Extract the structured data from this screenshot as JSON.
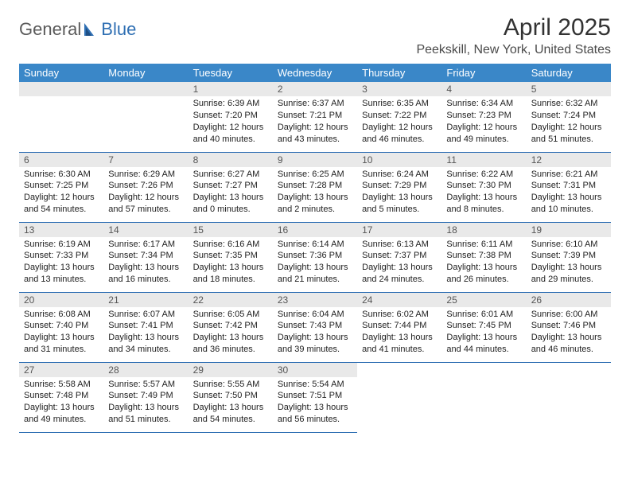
{
  "brand": {
    "word1": "General",
    "word2": "Blue"
  },
  "colors": {
    "header_bg": "#3a87c8",
    "header_text": "#ffffff",
    "daynum_bg": "#e9e9e9",
    "daynum_text": "#555555",
    "cell_border": "#2f6fb3",
    "body_text": "#222222",
    "title_text": "#333333",
    "location_text": "#4a4a4a",
    "logo_gray": "#5a5a5a",
    "logo_blue": "#2f6fb3",
    "page_bg": "#ffffff"
  },
  "title": "April 2025",
  "location": "Peekskill, New York, United States",
  "weekday_headers": [
    "Sunday",
    "Monday",
    "Tuesday",
    "Wednesday",
    "Thursday",
    "Friday",
    "Saturday"
  ],
  "weeks": [
    [
      null,
      null,
      {
        "n": "1",
        "sunrise": "Sunrise: 6:39 AM",
        "sunset": "Sunset: 7:20 PM",
        "daylight": "Daylight: 12 hours and 40 minutes."
      },
      {
        "n": "2",
        "sunrise": "Sunrise: 6:37 AM",
        "sunset": "Sunset: 7:21 PM",
        "daylight": "Daylight: 12 hours and 43 minutes."
      },
      {
        "n": "3",
        "sunrise": "Sunrise: 6:35 AM",
        "sunset": "Sunset: 7:22 PM",
        "daylight": "Daylight: 12 hours and 46 minutes."
      },
      {
        "n": "4",
        "sunrise": "Sunrise: 6:34 AM",
        "sunset": "Sunset: 7:23 PM",
        "daylight": "Daylight: 12 hours and 49 minutes."
      },
      {
        "n": "5",
        "sunrise": "Sunrise: 6:32 AM",
        "sunset": "Sunset: 7:24 PM",
        "daylight": "Daylight: 12 hours and 51 minutes."
      }
    ],
    [
      {
        "n": "6",
        "sunrise": "Sunrise: 6:30 AM",
        "sunset": "Sunset: 7:25 PM",
        "daylight": "Daylight: 12 hours and 54 minutes."
      },
      {
        "n": "7",
        "sunrise": "Sunrise: 6:29 AM",
        "sunset": "Sunset: 7:26 PM",
        "daylight": "Daylight: 12 hours and 57 minutes."
      },
      {
        "n": "8",
        "sunrise": "Sunrise: 6:27 AM",
        "sunset": "Sunset: 7:27 PM",
        "daylight": "Daylight: 13 hours and 0 minutes."
      },
      {
        "n": "9",
        "sunrise": "Sunrise: 6:25 AM",
        "sunset": "Sunset: 7:28 PM",
        "daylight": "Daylight: 13 hours and 2 minutes."
      },
      {
        "n": "10",
        "sunrise": "Sunrise: 6:24 AM",
        "sunset": "Sunset: 7:29 PM",
        "daylight": "Daylight: 13 hours and 5 minutes."
      },
      {
        "n": "11",
        "sunrise": "Sunrise: 6:22 AM",
        "sunset": "Sunset: 7:30 PM",
        "daylight": "Daylight: 13 hours and 8 minutes."
      },
      {
        "n": "12",
        "sunrise": "Sunrise: 6:21 AM",
        "sunset": "Sunset: 7:31 PM",
        "daylight": "Daylight: 13 hours and 10 minutes."
      }
    ],
    [
      {
        "n": "13",
        "sunrise": "Sunrise: 6:19 AM",
        "sunset": "Sunset: 7:33 PM",
        "daylight": "Daylight: 13 hours and 13 minutes."
      },
      {
        "n": "14",
        "sunrise": "Sunrise: 6:17 AM",
        "sunset": "Sunset: 7:34 PM",
        "daylight": "Daylight: 13 hours and 16 minutes."
      },
      {
        "n": "15",
        "sunrise": "Sunrise: 6:16 AM",
        "sunset": "Sunset: 7:35 PM",
        "daylight": "Daylight: 13 hours and 18 minutes."
      },
      {
        "n": "16",
        "sunrise": "Sunrise: 6:14 AM",
        "sunset": "Sunset: 7:36 PM",
        "daylight": "Daylight: 13 hours and 21 minutes."
      },
      {
        "n": "17",
        "sunrise": "Sunrise: 6:13 AM",
        "sunset": "Sunset: 7:37 PM",
        "daylight": "Daylight: 13 hours and 24 minutes."
      },
      {
        "n": "18",
        "sunrise": "Sunrise: 6:11 AM",
        "sunset": "Sunset: 7:38 PM",
        "daylight": "Daylight: 13 hours and 26 minutes."
      },
      {
        "n": "19",
        "sunrise": "Sunrise: 6:10 AM",
        "sunset": "Sunset: 7:39 PM",
        "daylight": "Daylight: 13 hours and 29 minutes."
      }
    ],
    [
      {
        "n": "20",
        "sunrise": "Sunrise: 6:08 AM",
        "sunset": "Sunset: 7:40 PM",
        "daylight": "Daylight: 13 hours and 31 minutes."
      },
      {
        "n": "21",
        "sunrise": "Sunrise: 6:07 AM",
        "sunset": "Sunset: 7:41 PM",
        "daylight": "Daylight: 13 hours and 34 minutes."
      },
      {
        "n": "22",
        "sunrise": "Sunrise: 6:05 AM",
        "sunset": "Sunset: 7:42 PM",
        "daylight": "Daylight: 13 hours and 36 minutes."
      },
      {
        "n": "23",
        "sunrise": "Sunrise: 6:04 AM",
        "sunset": "Sunset: 7:43 PM",
        "daylight": "Daylight: 13 hours and 39 minutes."
      },
      {
        "n": "24",
        "sunrise": "Sunrise: 6:02 AM",
        "sunset": "Sunset: 7:44 PM",
        "daylight": "Daylight: 13 hours and 41 minutes."
      },
      {
        "n": "25",
        "sunrise": "Sunrise: 6:01 AM",
        "sunset": "Sunset: 7:45 PM",
        "daylight": "Daylight: 13 hours and 44 minutes."
      },
      {
        "n": "26",
        "sunrise": "Sunrise: 6:00 AM",
        "sunset": "Sunset: 7:46 PM",
        "daylight": "Daylight: 13 hours and 46 minutes."
      }
    ],
    [
      {
        "n": "27",
        "sunrise": "Sunrise: 5:58 AM",
        "sunset": "Sunset: 7:48 PM",
        "daylight": "Daylight: 13 hours and 49 minutes."
      },
      {
        "n": "28",
        "sunrise": "Sunrise: 5:57 AM",
        "sunset": "Sunset: 7:49 PM",
        "daylight": "Daylight: 13 hours and 51 minutes."
      },
      {
        "n": "29",
        "sunrise": "Sunrise: 5:55 AM",
        "sunset": "Sunset: 7:50 PM",
        "daylight": "Daylight: 13 hours and 54 minutes."
      },
      {
        "n": "30",
        "sunrise": "Sunrise: 5:54 AM",
        "sunset": "Sunset: 7:51 PM",
        "daylight": "Daylight: 13 hours and 56 minutes."
      },
      null,
      null,
      null
    ]
  ]
}
